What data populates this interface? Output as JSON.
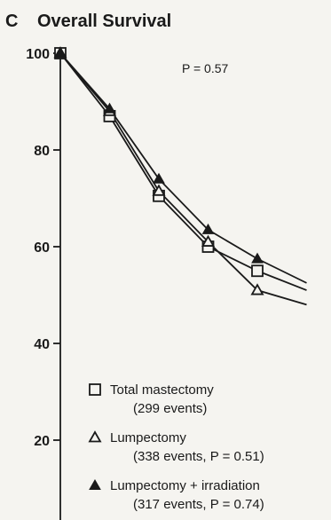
{
  "chart_data": {
    "type": "line",
    "panel_label": "C",
    "title": "Overall Survival",
    "pvalue_text": "P = 0.57",
    "ylim": [
      0,
      100
    ],
    "y_ticks": [
      "100",
      "80",
      "60",
      "40",
      "20"
    ],
    "y_tick_values": [
      100,
      80,
      60,
      40,
      20
    ],
    "x": [
      0,
      1,
      2,
      3,
      4,
      5
    ],
    "series": [
      {
        "name": "Total mastectomy",
        "legend_sub": "(299 events)",
        "marker": "open-square",
        "values": [
          100,
          87,
          70.5,
          60,
          55,
          51
        ]
      },
      {
        "name": "Lumpectomy",
        "legend_sub": "(338 events, P = 0.51)",
        "marker": "open-triangle",
        "values": [
          100,
          88,
          71.5,
          61,
          51,
          48
        ]
      },
      {
        "name": "Lumpectomy + irradiation",
        "legend_sub": "(317 events, P = 0.74)",
        "marker": "filled-triangle",
        "values": [
          100,
          88.5,
          74,
          63.5,
          57.5,
          52.5
        ]
      }
    ],
    "grid": false,
    "legend_position": "bottom-right"
  }
}
